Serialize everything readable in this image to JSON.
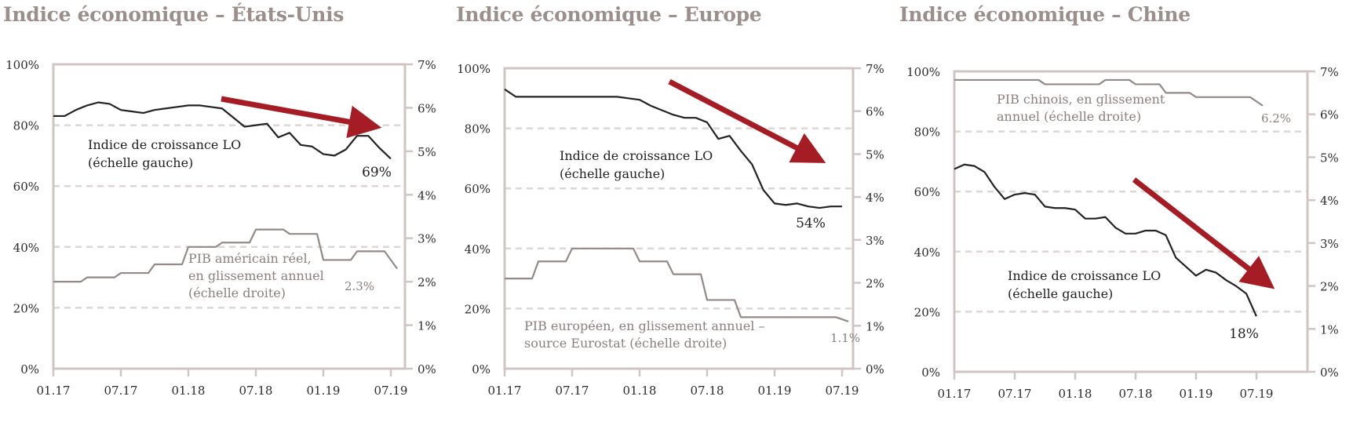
{
  "colors": {
    "title": "#9a8f8a",
    "frame": "#cfc6c3",
    "grid": "#ddd6d3",
    "lo_series": "#222222",
    "gdp_series": "#928a86",
    "arrow": "#a51c24"
  },
  "chart_data": [
    {
      "type": "line",
      "title": "Indice économique – États-Unis",
      "x_ticks": [
        "01.17",
        "07.17",
        "01.18",
        "07.18",
        "01.19",
        "07.19"
      ],
      "left_axis": {
        "ylim": [
          0,
          100
        ],
        "ticks": [
          "0%",
          "20%",
          "40%",
          "60%",
          "80%",
          "100%"
        ]
      },
      "right_axis": {
        "ylim": [
          0,
          7
        ],
        "ticks": [
          "0%",
          "1%",
          "2%",
          "3%",
          "4%",
          "5%",
          "6%",
          "7%"
        ]
      },
      "grid": true,
      "series": [
        {
          "name": "Indice de croissance LO (échelle gauche)",
          "axis": "left",
          "x": [
            "01.17",
            "02.17",
            "03.17",
            "04.17",
            "05.17",
            "06.17",
            "07.17",
            "08.17",
            "09.17",
            "10.17",
            "11.17",
            "12.17",
            "01.18",
            "02.18",
            "03.18",
            "04.18",
            "05.18",
            "06.18",
            "07.18",
            "08.18",
            "09.18",
            "10.18",
            "11.18",
            "12.18",
            "01.19",
            "02.19",
            "03.19",
            "04.19",
            "05.19",
            "06.19"
          ],
          "values": [
            83,
            83,
            85,
            86.5,
            87.5,
            87,
            85,
            84.5,
            84,
            85,
            85.5,
            86,
            86.5,
            86.5,
            86,
            85.5,
            82.5,
            79.5,
            80,
            80.5,
            76,
            77.5,
            73.5,
            73,
            70.5,
            70,
            72,
            76.5,
            76.5,
            72.5
          ],
          "label_end": "69%",
          "end_value": 69
        },
        {
          "name": "PIB américain réel, en glissement annuel (échelle droite)",
          "axis": "right",
          "x": [
            "Q1.17",
            "Q2.17",
            "Q3.17",
            "Q4.17",
            "Q1.18",
            "Q2.18",
            "Q3.18",
            "Q4.18",
            "Q1.19",
            "Q2.19"
          ],
          "values": [
            2.0,
            2.1,
            2.2,
            2.4,
            2.8,
            2.9,
            3.2,
            3.1,
            2.5,
            2.7
          ],
          "label_end": "2.3%",
          "end_value": 2.3
        }
      ],
      "annotations": {
        "lo_label": [
          "Indice de croissance LO",
          "(échelle gauche)"
        ],
        "gdp_label": [
          "PIB américain réel,",
          "en glissement annuel",
          "(échelle droite)"
        ]
      }
    },
    {
      "type": "line",
      "title": "Indice économique – Europe",
      "x_ticks": [
        "01.17",
        "07.17",
        "01.18",
        "07.18",
        "01.19",
        "07.19"
      ],
      "left_axis": {
        "ylim": [
          0,
          100
        ],
        "ticks": [
          "0%",
          "20%",
          "40%",
          "60%",
          "80%",
          "100%"
        ]
      },
      "right_axis": {
        "ylim": [
          0,
          7
        ],
        "ticks": [
          "0%",
          "1%",
          "2%",
          "3%",
          "4%",
          "5%",
          "6%",
          "7%"
        ]
      },
      "grid": true,
      "series": [
        {
          "name": "Indice de croissance LO (échelle gauche)",
          "axis": "left",
          "x": [
            "01.17",
            "02.17",
            "03.17",
            "04.17",
            "05.17",
            "06.17",
            "07.17",
            "08.17",
            "09.17",
            "10.17",
            "11.17",
            "12.17",
            "01.18",
            "02.18",
            "03.18",
            "04.18",
            "05.18",
            "06.18",
            "07.18",
            "08.18",
            "09.18",
            "10.18",
            "11.18",
            "12.18",
            "01.19",
            "02.19",
            "03.19",
            "04.19",
            "05.19",
            "06.19"
          ],
          "values": [
            93,
            90.5,
            90.5,
            90.5,
            90.5,
            90.5,
            90.5,
            90.5,
            90.5,
            90.5,
            90.5,
            90,
            89.5,
            87.5,
            86,
            84.5,
            83.5,
            83.5,
            82,
            76.5,
            77.5,
            72.5,
            68,
            59.5,
            55,
            54.5,
            55,
            54,
            53.5,
            54
          ],
          "label_end": "54%",
          "end_value": 54
        },
        {
          "name": "PIB européen, en glissement annuel – source Eurostat (échelle droite)",
          "axis": "right",
          "x": [
            "Q1.17",
            "Q2.17",
            "Q3.17",
            "Q4.17",
            "Q1.18",
            "Q2.18",
            "Q3.18",
            "Q4.18",
            "Q1.19",
            "Q2.19"
          ],
          "values": [
            2.1,
            2.5,
            2.8,
            2.8,
            2.5,
            2.2,
            1.6,
            1.2,
            1.2,
            1.2
          ],
          "label_end": "1.1%",
          "end_value": 1.1
        }
      ],
      "annotations": {
        "lo_label": [
          "Indice de croissance LO",
          "(échelle gauche)"
        ],
        "gdp_label": [
          "PIB européen, en glissement annuel –",
          "source Eurostat (échelle droite)"
        ]
      }
    },
    {
      "type": "line",
      "title": "Indice économique – Chine",
      "x_ticks": [
        "01.17",
        "07.17",
        "01.18",
        "07.18",
        "01.19",
        "07.19"
      ],
      "left_axis": {
        "ylim": [
          0,
          100
        ],
        "ticks": [
          "0%",
          "20%",
          "40%",
          "60%",
          "80%",
          "100%"
        ]
      },
      "right_axis": {
        "ylim": [
          0,
          7
        ],
        "ticks": [
          "0%",
          "1%",
          "2%",
          "3%",
          "4%",
          "5%",
          "6%",
          "7%"
        ]
      },
      "grid": true,
      "series": [
        {
          "name": "Indice de croissance LO (échelle gauche)",
          "axis": "left",
          "x": [
            "01.17",
            "02.17",
            "03.17",
            "04.17",
            "05.17",
            "06.17",
            "07.17",
            "08.17",
            "09.17",
            "10.17",
            "11.17",
            "12.17",
            "01.18",
            "02.18",
            "03.18",
            "04.18",
            "05.18",
            "06.18",
            "07.18",
            "08.18",
            "09.18",
            "10.18",
            "11.18",
            "12.18",
            "01.19",
            "02.19",
            "03.19",
            "04.19",
            "05.19",
            "06.19"
          ],
          "values": [
            67.5,
            69,
            68.5,
            66.5,
            61.5,
            57.5,
            59,
            59.5,
            59,
            55,
            54.5,
            54.5,
            54,
            51,
            51,
            51.5,
            48,
            46,
            46,
            47,
            47,
            45.5,
            38,
            35,
            32,
            34,
            33,
            30.5,
            28.5,
            26
          ],
          "label_end": "18%",
          "end_value": 18.5
        },
        {
          "name": "PIB chinois, en glissement annuel (échelle droite)",
          "axis": "right",
          "x": [
            "Q1.17",
            "Q2.17",
            "Q3.17",
            "Q4.17",
            "Q1.18",
            "Q2.18",
            "Q3.18",
            "Q4.18",
            "Q1.19",
            "Q2.19"
          ],
          "values": [
            6.8,
            6.8,
            6.8,
            6.7,
            6.7,
            6.8,
            6.7,
            6.5,
            6.4,
            6.4
          ],
          "label_end": "6.2%",
          "end_value": 6.2
        }
      ],
      "annotations": {
        "lo_label": [
          "Indice de croissance LO",
          "(échelle gauche)"
        ],
        "gdp_label": [
          "PIB chinois, en glissement",
          "annuel (échelle droite)"
        ]
      }
    }
  ]
}
